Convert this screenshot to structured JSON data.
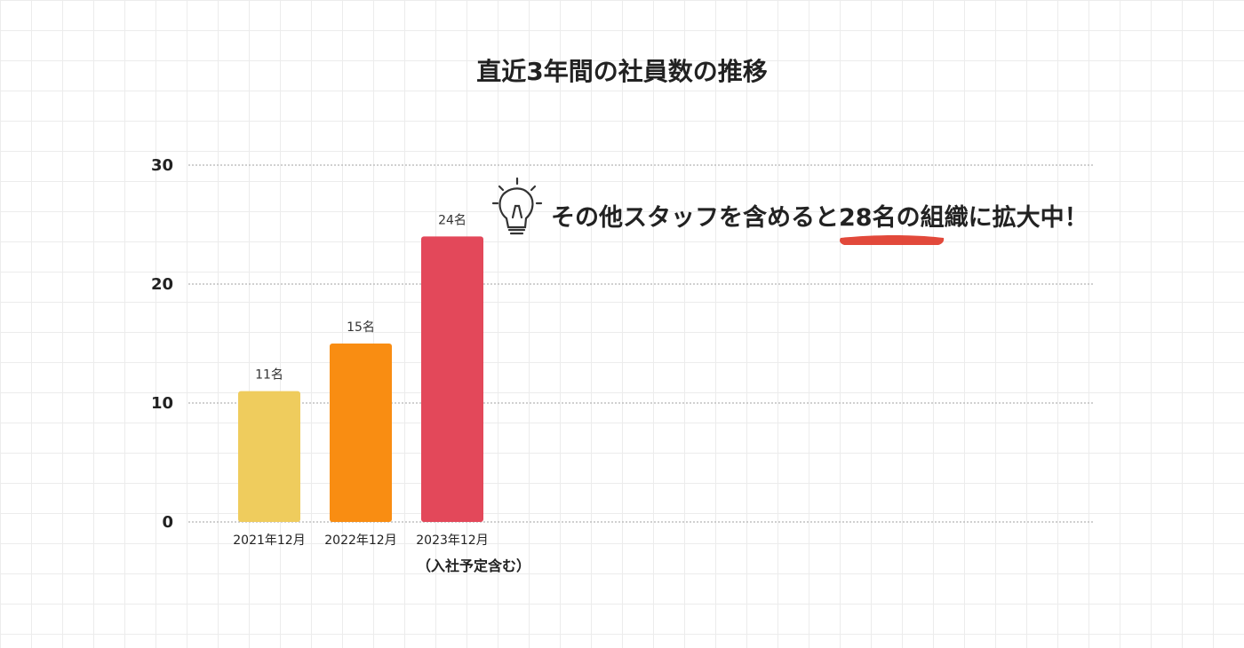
{
  "chart_data": {
    "type": "bar",
    "title": "直近3年間の社員数の推移",
    "categories": [
      "2021年12月",
      "2022年12月",
      "2023年12月"
    ],
    "category_notes": [
      "",
      "",
      "（入社予定含む）"
    ],
    "values": [
      11,
      15,
      24
    ],
    "data_labels": [
      "11名",
      "15名",
      "24名"
    ],
    "bar_colors": [
      "#efcc5d",
      "#f98d12",
      "#e3485a"
    ],
    "yticks": [
      "0",
      "10",
      "20",
      "30"
    ],
    "ylim": [
      0,
      30
    ],
    "grid": true,
    "annotation": {
      "parts": [
        "その他スタッフを含めると",
        "28名",
        "の組織に拡大中！"
      ],
      "icon": "lightbulb-icon",
      "highlight_color": "#e03a2a"
    }
  }
}
